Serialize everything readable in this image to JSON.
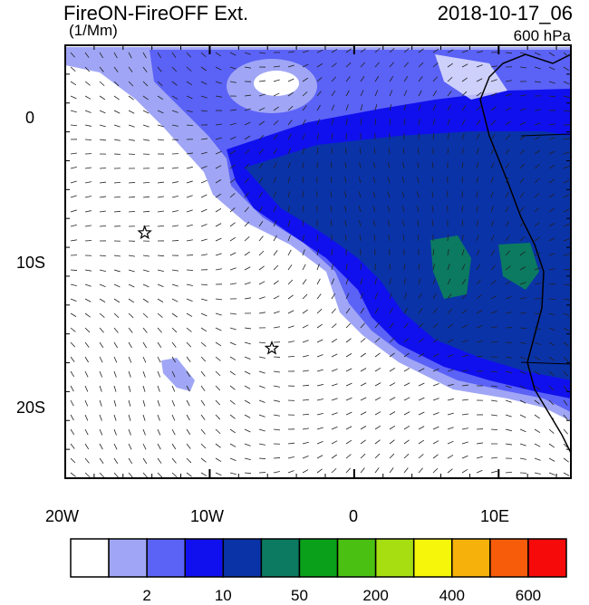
{
  "header": {
    "title": "FireON-FireOFF Ext.",
    "units": "(1/Mm)",
    "datetime": "2018-10-17_06",
    "level": "600 hPa"
  },
  "map": {
    "lon_range": [
      -20,
      15
    ],
    "lat_range": [
      -25,
      5
    ],
    "lon_ticks": [
      "20W",
      "10W",
      "0",
      "10E"
    ],
    "lat_ticks": [
      "0",
      "10S",
      "20S"
    ],
    "markers": [
      {
        "type": "star",
        "lon": -14.5,
        "lat": -8
      },
      {
        "type": "star",
        "lon": -5.7,
        "lat": -16
      }
    ]
  },
  "colorbar": {
    "colors": [
      "#ffffff",
      "#a0a6f5",
      "#5b62f6",
      "#1010ee",
      "#0a33a8",
      "#0b7a60",
      "#0aa01a",
      "#4ac012",
      "#a6de12",
      "#f6f60a",
      "#f6b20a",
      "#f65c0a",
      "#f60a0a"
    ],
    "labels": [
      "2",
      "10",
      "50",
      "200",
      "400",
      "600"
    ]
  }
}
